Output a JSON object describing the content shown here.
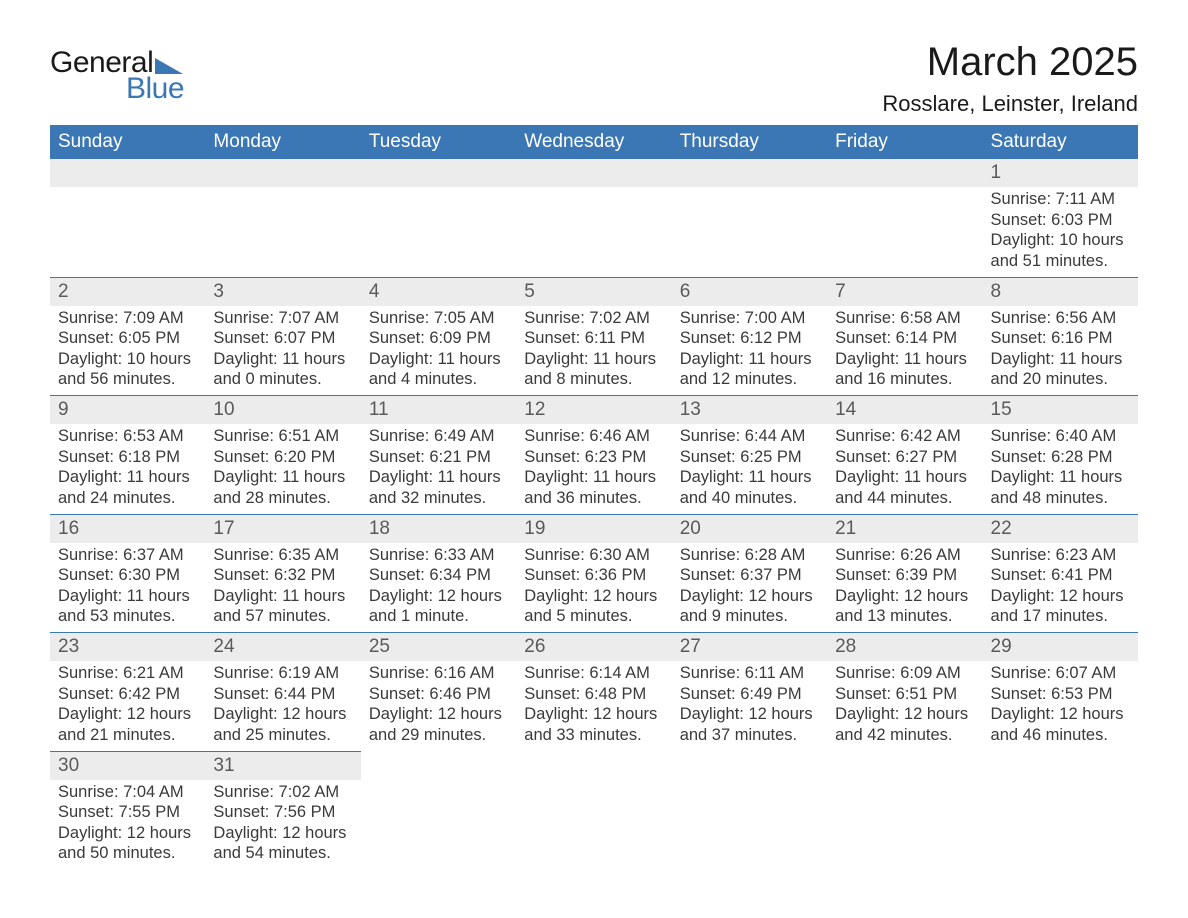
{
  "logo": {
    "text_general": "General",
    "text_blue": "Blue",
    "shape_color": "#3b76b5"
  },
  "header": {
    "month_title": "March 2025",
    "location": "Rosslare, Leinster, Ireland"
  },
  "colors": {
    "header_bg": "#3b76b5",
    "header_fg": "#ffffff",
    "daynum_bg": "#ececec",
    "daynum_fg": "#5a5a5a",
    "body_fg": "#3a3a3a",
    "row_border": "#3b76b5",
    "page_bg": "#ffffff"
  },
  "day_headers": [
    "Sunday",
    "Monday",
    "Tuesday",
    "Wednesday",
    "Thursday",
    "Friday",
    "Saturday"
  ],
  "labels": {
    "sunrise": "Sunrise:",
    "sunset": "Sunset:",
    "daylight": "Daylight:"
  },
  "weeks": [
    [
      null,
      null,
      null,
      null,
      null,
      null,
      {
        "n": "1",
        "sr": "7:11 AM",
        "ss": "6:03 PM",
        "dl": "10 hours and 51 minutes."
      }
    ],
    [
      {
        "n": "2",
        "sr": "7:09 AM",
        "ss": "6:05 PM",
        "dl": "10 hours and 56 minutes."
      },
      {
        "n": "3",
        "sr": "7:07 AM",
        "ss": "6:07 PM",
        "dl": "11 hours and 0 minutes."
      },
      {
        "n": "4",
        "sr": "7:05 AM",
        "ss": "6:09 PM",
        "dl": "11 hours and 4 minutes."
      },
      {
        "n": "5",
        "sr": "7:02 AM",
        "ss": "6:11 PM",
        "dl": "11 hours and 8 minutes."
      },
      {
        "n": "6",
        "sr": "7:00 AM",
        "ss": "6:12 PM",
        "dl": "11 hours and 12 minutes."
      },
      {
        "n": "7",
        "sr": "6:58 AM",
        "ss": "6:14 PM",
        "dl": "11 hours and 16 minutes."
      },
      {
        "n": "8",
        "sr": "6:56 AM",
        "ss": "6:16 PM",
        "dl": "11 hours and 20 minutes."
      }
    ],
    [
      {
        "n": "9",
        "sr": "6:53 AM",
        "ss": "6:18 PM",
        "dl": "11 hours and 24 minutes."
      },
      {
        "n": "10",
        "sr": "6:51 AM",
        "ss": "6:20 PM",
        "dl": "11 hours and 28 minutes."
      },
      {
        "n": "11",
        "sr": "6:49 AM",
        "ss": "6:21 PM",
        "dl": "11 hours and 32 minutes."
      },
      {
        "n": "12",
        "sr": "6:46 AM",
        "ss": "6:23 PM",
        "dl": "11 hours and 36 minutes."
      },
      {
        "n": "13",
        "sr": "6:44 AM",
        "ss": "6:25 PM",
        "dl": "11 hours and 40 minutes."
      },
      {
        "n": "14",
        "sr": "6:42 AM",
        "ss": "6:27 PM",
        "dl": "11 hours and 44 minutes."
      },
      {
        "n": "15",
        "sr": "6:40 AM",
        "ss": "6:28 PM",
        "dl": "11 hours and 48 minutes."
      }
    ],
    [
      {
        "n": "16",
        "sr": "6:37 AM",
        "ss": "6:30 PM",
        "dl": "11 hours and 53 minutes."
      },
      {
        "n": "17",
        "sr": "6:35 AM",
        "ss": "6:32 PM",
        "dl": "11 hours and 57 minutes."
      },
      {
        "n": "18",
        "sr": "6:33 AM",
        "ss": "6:34 PM",
        "dl": "12 hours and 1 minute."
      },
      {
        "n": "19",
        "sr": "6:30 AM",
        "ss": "6:36 PM",
        "dl": "12 hours and 5 minutes."
      },
      {
        "n": "20",
        "sr": "6:28 AM",
        "ss": "6:37 PM",
        "dl": "12 hours and 9 minutes."
      },
      {
        "n": "21",
        "sr": "6:26 AM",
        "ss": "6:39 PM",
        "dl": "12 hours and 13 minutes."
      },
      {
        "n": "22",
        "sr": "6:23 AM",
        "ss": "6:41 PM",
        "dl": "12 hours and 17 minutes."
      }
    ],
    [
      {
        "n": "23",
        "sr": "6:21 AM",
        "ss": "6:42 PM",
        "dl": "12 hours and 21 minutes."
      },
      {
        "n": "24",
        "sr": "6:19 AM",
        "ss": "6:44 PM",
        "dl": "12 hours and 25 minutes."
      },
      {
        "n": "25",
        "sr": "6:16 AM",
        "ss": "6:46 PM",
        "dl": "12 hours and 29 minutes."
      },
      {
        "n": "26",
        "sr": "6:14 AM",
        "ss": "6:48 PM",
        "dl": "12 hours and 33 minutes."
      },
      {
        "n": "27",
        "sr": "6:11 AM",
        "ss": "6:49 PM",
        "dl": "12 hours and 37 minutes."
      },
      {
        "n": "28",
        "sr": "6:09 AM",
        "ss": "6:51 PM",
        "dl": "12 hours and 42 minutes."
      },
      {
        "n": "29",
        "sr": "6:07 AM",
        "ss": "6:53 PM",
        "dl": "12 hours and 46 minutes."
      }
    ],
    [
      {
        "n": "30",
        "sr": "7:04 AM",
        "ss": "7:55 PM",
        "dl": "12 hours and 50 minutes."
      },
      {
        "n": "31",
        "sr": "7:02 AM",
        "ss": "7:56 PM",
        "dl": "12 hours and 54 minutes."
      },
      null,
      null,
      null,
      null,
      null
    ]
  ]
}
